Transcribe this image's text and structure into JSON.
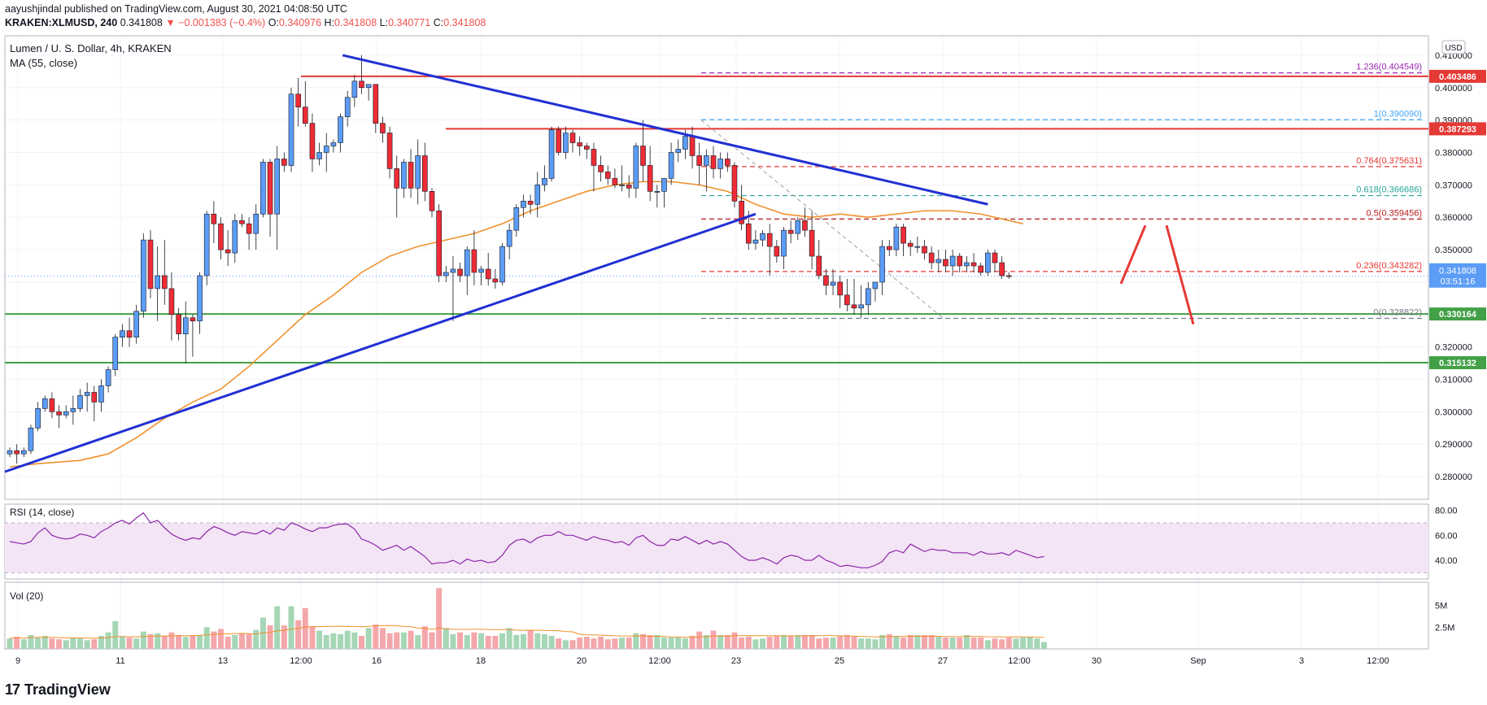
{
  "header": {
    "publisher_line": "aayushjindal published on TradingView.com, August 30, 2021 04:08:50 UTC",
    "symbol": "KRAKEN:XLMUSD, 240",
    "last": "0.341808",
    "change": "−0.001383 (−0.4%)",
    "o_label": "O:",
    "o": "0.340976",
    "h_label": "H:",
    "h": "0.341808",
    "l_label": "L:",
    "l": "0.340771",
    "c_label": "C:",
    "c": "0.341808"
  },
  "pane_labels": {
    "main_title": "Lumen / U. S. Dollar, 4h, KRAKEN",
    "ma": "MA (55, close)",
    "rsi": "RSI (14, close)",
    "vol": "Vol (20)",
    "currency": "USD"
  },
  "footer": {
    "brand": "TradingView"
  },
  "colors": {
    "up": "#5b9cf6",
    "down": "#ef2c36",
    "ma": "#f0912c",
    "trend": "#2130d3",
    "resistance": "#e53935",
    "support": "#43a047",
    "rsi_line": "#8e24aa",
    "rsi_band": "#f3e5f5",
    "vol_up": "#a5d6b5",
    "vol_down": "#f4a7aa"
  },
  "chart_data": {
    "type": "candlestick",
    "price_axis": {
      "ylim": [
        0.273,
        0.416
      ],
      "ticks": [
        "0.410000",
        "0.400000",
        "0.390000",
        "0.380000",
        "0.370000",
        "0.360000",
        "0.350000",
        "0.340000",
        "0.330000",
        "0.320000",
        "0.310000",
        "0.300000",
        "0.290000",
        "0.280000"
      ]
    },
    "time_axis": [
      "9",
      "11",
      "13",
      "12:00",
      "16",
      "18",
      "20",
      "12:00",
      "23",
      "25",
      "27",
      "12:00",
      "30",
      "Sep",
      "3",
      "12:00"
    ],
    "candles": [
      [
        0.287,
        0.289,
        0.286,
        0.288
      ],
      [
        0.288,
        0.29,
        0.284,
        0.287
      ],
      [
        0.287,
        0.289,
        0.286,
        0.288
      ],
      [
        0.288,
        0.296,
        0.287,
        0.295
      ],
      [
        0.295,
        0.303,
        0.294,
        0.301
      ],
      [
        0.301,
        0.305,
        0.3,
        0.304
      ],
      [
        0.304,
        0.306,
        0.298,
        0.3
      ],
      [
        0.3,
        0.302,
        0.295,
        0.299
      ],
      [
        0.299,
        0.302,
        0.298,
        0.3
      ],
      [
        0.3,
        0.305,
        0.296,
        0.301
      ],
      [
        0.301,
        0.307,
        0.3,
        0.305
      ],
      [
        0.305,
        0.309,
        0.3,
        0.306
      ],
      [
        0.306,
        0.308,
        0.297,
        0.303
      ],
      [
        0.303,
        0.31,
        0.3,
        0.308
      ],
      [
        0.308,
        0.314,
        0.306,
        0.313
      ],
      [
        0.313,
        0.324,
        0.311,
        0.323
      ],
      [
        0.323,
        0.327,
        0.32,
        0.325
      ],
      [
        0.325,
        0.329,
        0.32,
        0.323
      ],
      [
        0.323,
        0.333,
        0.321,
        0.331
      ],
      [
        0.331,
        0.355,
        0.329,
        0.353
      ],
      [
        0.353,
        0.356,
        0.335,
        0.338
      ],
      [
        0.338,
        0.351,
        0.328,
        0.342
      ],
      [
        0.342,
        0.353,
        0.333,
        0.338
      ],
      [
        0.338,
        0.343,
        0.322,
        0.33
      ],
      [
        0.33,
        0.332,
        0.322,
        0.324
      ],
      [
        0.324,
        0.334,
        0.315,
        0.329
      ],
      [
        0.329,
        0.33,
        0.317,
        0.328
      ],
      [
        0.328,
        0.343,
        0.324,
        0.342
      ],
      [
        0.342,
        0.362,
        0.339,
        0.361
      ],
      [
        0.361,
        0.365,
        0.352,
        0.358
      ],
      [
        0.358,
        0.36,
        0.347,
        0.35
      ],
      [
        0.35,
        0.356,
        0.345,
        0.349
      ],
      [
        0.349,
        0.361,
        0.346,
        0.359
      ],
      [
        0.359,
        0.361,
        0.357,
        0.358
      ],
      [
        0.358,
        0.36,
        0.35,
        0.355
      ],
      [
        0.355,
        0.364,
        0.35,
        0.361
      ],
      [
        0.361,
        0.378,
        0.36,
        0.377
      ],
      [
        0.377,
        0.378,
        0.354,
        0.361
      ],
      [
        0.361,
        0.382,
        0.35,
        0.378
      ],
      [
        0.378,
        0.38,
        0.374,
        0.376
      ],
      [
        0.376,
        0.4,
        0.374,
        0.398
      ],
      [
        0.398,
        0.403,
        0.388,
        0.394
      ],
      [
        0.394,
        0.402,
        0.388,
        0.389
      ],
      [
        0.389,
        0.392,
        0.374,
        0.378
      ],
      [
        0.378,
        0.383,
        0.376,
        0.38
      ],
      [
        0.38,
        0.386,
        0.374,
        0.382
      ],
      [
        0.382,
        0.384,
        0.38,
        0.383
      ],
      [
        0.383,
        0.392,
        0.38,
        0.391
      ],
      [
        0.391,
        0.399,
        0.388,
        0.397
      ],
      [
        0.397,
        0.404,
        0.394,
        0.402
      ],
      [
        0.402,
        0.41,
        0.398,
        0.4
      ],
      [
        0.4,
        0.401,
        0.396,
        0.401
      ],
      [
        0.401,
        0.401,
        0.386,
        0.389
      ],
      [
        0.389,
        0.391,
        0.383,
        0.386
      ],
      [
        0.386,
        0.388,
        0.372,
        0.375
      ],
      [
        0.375,
        0.379,
        0.36,
        0.369
      ],
      [
        0.369,
        0.378,
        0.366,
        0.377
      ],
      [
        0.377,
        0.381,
        0.366,
        0.369
      ],
      [
        0.369,
        0.384,
        0.364,
        0.379
      ],
      [
        0.379,
        0.383,
        0.365,
        0.368
      ],
      [
        0.368,
        0.369,
        0.36,
        0.362
      ],
      [
        0.362,
        0.364,
        0.34,
        0.342
      ],
      [
        0.342,
        0.345,
        0.34,
        0.343
      ],
      [
        0.343,
        0.348,
        0.328,
        0.344
      ],
      [
        0.344,
        0.346,
        0.34,
        0.342
      ],
      [
        0.342,
        0.351,
        0.336,
        0.35
      ],
      [
        0.35,
        0.356,
        0.339,
        0.343
      ],
      [
        0.343,
        0.345,
        0.339,
        0.344
      ],
      [
        0.344,
        0.349,
        0.339,
        0.341
      ],
      [
        0.341,
        0.344,
        0.338,
        0.34
      ],
      [
        0.34,
        0.352,
        0.339,
        0.351
      ],
      [
        0.351,
        0.358,
        0.347,
        0.356
      ],
      [
        0.356,
        0.364,
        0.354,
        0.363
      ],
      [
        0.363,
        0.367,
        0.36,
        0.365
      ],
      [
        0.365,
        0.367,
        0.361,
        0.364
      ],
      [
        0.364,
        0.374,
        0.36,
        0.37
      ],
      [
        0.37,
        0.376,
        0.368,
        0.372
      ],
      [
        0.372,
        0.388,
        0.371,
        0.387
      ],
      [
        0.387,
        0.388,
        0.379,
        0.38
      ],
      [
        0.38,
        0.388,
        0.378,
        0.386
      ],
      [
        0.386,
        0.387,
        0.38,
        0.383
      ],
      [
        0.383,
        0.385,
        0.379,
        0.382
      ],
      [
        0.382,
        0.383,
        0.378,
        0.381
      ],
      [
        0.381,
        0.383,
        0.368,
        0.376
      ],
      [
        0.376,
        0.379,
        0.371,
        0.374
      ],
      [
        0.374,
        0.376,
        0.37,
        0.372
      ],
      [
        0.372,
        0.375,
        0.369,
        0.37
      ],
      [
        0.37,
        0.376,
        0.368,
        0.37
      ],
      [
        0.37,
        0.373,
        0.366,
        0.369
      ],
      [
        0.369,
        0.383,
        0.366,
        0.382
      ],
      [
        0.382,
        0.39,
        0.371,
        0.376
      ],
      [
        0.376,
        0.382,
        0.365,
        0.368
      ],
      [
        0.368,
        0.37,
        0.363,
        0.368
      ],
      [
        0.368,
        0.372,
        0.363,
        0.372
      ],
      [
        0.372,
        0.383,
        0.37,
        0.38
      ],
      [
        0.38,
        0.384,
        0.377,
        0.381
      ],
      [
        0.381,
        0.387,
        0.378,
        0.385
      ],
      [
        0.385,
        0.388,
        0.375,
        0.379
      ],
      [
        0.379,
        0.383,
        0.37,
        0.376
      ],
      [
        0.376,
        0.381,
        0.368,
        0.379
      ],
      [
        0.379,
        0.382,
        0.372,
        0.375
      ],
      [
        0.375,
        0.38,
        0.372,
        0.378
      ],
      [
        0.378,
        0.38,
        0.374,
        0.376
      ],
      [
        0.376,
        0.377,
        0.363,
        0.365
      ],
      [
        0.365,
        0.37,
        0.356,
        0.358
      ],
      [
        0.358,
        0.362,
        0.35,
        0.352
      ],
      [
        0.352,
        0.356,
        0.35,
        0.353
      ],
      [
        0.353,
        0.356,
        0.351,
        0.355
      ],
      [
        0.355,
        0.358,
        0.342,
        0.351
      ],
      [
        0.351,
        0.353,
        0.346,
        0.348
      ],
      [
        0.348,
        0.357,
        0.344,
        0.356
      ],
      [
        0.356,
        0.359,
        0.352,
        0.355
      ],
      [
        0.355,
        0.36,
        0.353,
        0.359
      ],
      [
        0.359,
        0.363,
        0.354,
        0.356
      ],
      [
        0.356,
        0.362,
        0.344,
        0.348
      ],
      [
        0.348,
        0.353,
        0.341,
        0.342
      ],
      [
        0.342,
        0.344,
        0.336,
        0.339
      ],
      [
        0.339,
        0.344,
        0.336,
        0.34
      ],
      [
        0.34,
        0.342,
        0.332,
        0.336
      ],
      [
        0.336,
        0.341,
        0.331,
        0.333
      ],
      [
        0.333,
        0.341,
        0.33,
        0.332
      ],
      [
        0.332,
        0.339,
        0.329,
        0.333
      ],
      [
        0.333,
        0.34,
        0.33,
        0.338
      ],
      [
        0.338,
        0.34,
        0.334,
        0.34
      ],
      [
        0.34,
        0.353,
        0.336,
        0.351
      ],
      [
        0.351,
        0.353,
        0.348,
        0.35
      ],
      [
        0.35,
        0.358,
        0.348,
        0.357
      ],
      [
        0.357,
        0.358,
        0.348,
        0.352
      ],
      [
        0.352,
        0.353,
        0.348,
        0.351
      ],
      [
        0.351,
        0.354,
        0.349,
        0.351
      ],
      [
        0.351,
        0.353,
        0.347,
        0.349
      ],
      [
        0.349,
        0.351,
        0.344,
        0.346
      ],
      [
        0.346,
        0.35,
        0.343,
        0.347
      ],
      [
        0.347,
        0.35,
        0.343,
        0.345
      ],
      [
        0.345,
        0.35,
        0.342,
        0.348
      ],
      [
        0.348,
        0.349,
        0.343,
        0.345
      ],
      [
        0.345,
        0.348,
        0.343,
        0.346
      ],
      [
        0.346,
        0.349,
        0.343,
        0.345
      ],
      [
        0.345,
        0.346,
        0.342,
        0.343
      ],
      [
        0.343,
        0.35,
        0.342,
        0.349
      ],
      [
        0.349,
        0.35,
        0.343,
        0.346
      ],
      [
        0.346,
        0.348,
        0.341,
        0.342
      ],
      [
        0.342,
        0.343,
        0.341,
        0.3418
      ]
    ],
    "ma": [
      [
        0,
        0.283
      ],
      [
        4,
        0.284
      ],
      [
        10,
        0.285
      ],
      [
        14,
        0.287
      ],
      [
        18,
        0.292
      ],
      [
        22,
        0.298
      ],
      [
        26,
        0.303
      ],
      [
        30,
        0.307
      ],
      [
        34,
        0.314
      ],
      [
        38,
        0.322
      ],
      [
        42,
        0.33
      ],
      [
        46,
        0.336
      ],
      [
        50,
        0.343
      ],
      [
        54,
        0.348
      ],
      [
        58,
        0.351
      ],
      [
        62,
        0.353
      ],
      [
        66,
        0.355
      ],
      [
        70,
        0.358
      ],
      [
        74,
        0.362
      ],
      [
        78,
        0.365
      ],
      [
        82,
        0.368
      ],
      [
        86,
        0.37
      ],
      [
        90,
        0.371
      ],
      [
        94,
        0.371
      ],
      [
        98,
        0.37
      ],
      [
        102,
        0.368
      ],
      [
        106,
        0.364
      ],
      [
        110,
        0.361
      ],
      [
        114,
        0.36
      ],
      [
        118,
        0.361
      ],
      [
        122,
        0.36
      ],
      [
        126,
        0.361
      ],
      [
        130,
        0.362
      ],
      [
        134,
        0.362
      ],
      [
        138,
        0.361
      ],
      [
        142,
        0.359
      ],
      [
        144,
        0.358
      ]
    ],
    "trendlines": [
      {
        "from": [
          0,
          0.2815
        ],
        "to": [
          106,
          0.361
        ],
        "role": "support"
      },
      {
        "from": [
          48,
          0.41
        ],
        "to": [
          139,
          0.364
        ],
        "role": "resistance"
      }
    ],
    "resistance_levels": [
      0.403486,
      0.387293
    ],
    "support_levels": [
      0.330164,
      0.315132
    ],
    "level_labels": [
      "0.403486",
      "0.387293",
      "0.330164",
      "0.315132"
    ],
    "last_price": {
      "value": "0.341808",
      "countdown": "03:51:16",
      "price": 0.341808
    },
    "fibonacci": [
      {
        "label": "1.236(0.404549)",
        "price": 0.404549,
        "color": "#9c27b0"
      },
      {
        "label": "1(0.390090)",
        "price": 0.39009,
        "color": "#42a5f5"
      },
      {
        "label": "0.764(0.375631)",
        "price": 0.375631,
        "color": "#e53935"
      },
      {
        "label": "0.618(0.366686)",
        "price": 0.366686,
        "color": "#26a69a"
      },
      {
        "label": "0.5(0.359456)",
        "price": 0.359456,
        "color": "#b71c1c"
      },
      {
        "label": "0.236(0.343282)",
        "price": 0.343282,
        "color": "#e53935"
      },
      {
        "label": "0(0.328822)",
        "price": 0.328822,
        "color": "#787b86"
      }
    ],
    "projection": [
      [
        0.3395,
        0.3575
      ],
      [
        0.3575,
        0.327
      ]
    ],
    "rsi": {
      "levels": [
        30,
        70
      ],
      "ticks": [
        "80.00",
        "60.00",
        "40.00"
      ],
      "values": [
        55,
        54,
        53,
        55,
        62,
        66,
        60,
        58,
        57,
        58,
        61,
        60,
        58,
        63,
        66,
        70,
        72,
        69,
        74,
        78,
        70,
        72,
        66,
        61,
        58,
        56,
        58,
        57,
        63,
        67,
        65,
        62,
        60,
        63,
        62,
        61,
        64,
        61,
        66,
        64,
        70,
        68,
        65,
        63,
        66,
        66,
        68,
        69,
        69,
        65,
        57,
        55,
        52,
        48,
        50,
        52,
        48,
        51,
        47,
        43,
        37,
        38,
        38,
        40,
        37,
        41,
        39,
        40,
        38,
        39,
        44,
        52,
        56,
        57,
        54,
        58,
        60,
        60,
        63,
        60,
        60,
        58,
        56,
        59,
        57,
        56,
        54,
        55,
        52,
        58,
        60,
        55,
        52,
        52,
        57,
        56,
        59,
        56,
        53,
        56,
        53,
        55,
        53,
        48,
        43,
        40,
        40,
        42,
        40,
        37,
        42,
        44,
        43,
        40,
        40,
        44,
        40,
        38,
        35,
        36,
        35,
        34,
        34,
        36,
        39,
        46,
        48,
        46,
        53,
        50,
        47,
        49,
        48,
        48,
        46,
        46,
        46,
        44,
        47,
        45,
        45,
        46,
        44,
        48,
        46,
        44,
        42,
        43
      ]
    },
    "volume": {
      "ticks": [
        "5M",
        "2.5M"
      ],
      "values": [
        1.2,
        1.4,
        1.1,
        1.6,
        1.3,
        1.5,
        1.2,
        1.1,
        1.0,
        1.3,
        1.2,
        1.0,
        1.1,
        1.5,
        1.9,
        3.2,
        1.4,
        1.3,
        1.2,
        2.0,
        1.7,
        1.8,
        1.5,
        1.9,
        1.6,
        1.4,
        1.5,
        1.6,
        2.5,
        2.0,
        2.3,
        1.4,
        1.6,
        1.8,
        1.7,
        2.2,
        3.6,
        2.7,
        4.9,
        2.7,
        4.9,
        3.3,
        4.7,
        2.6,
        2.1,
        1.6,
        1.8,
        1.7,
        2.1,
        1.9,
        1.5,
        2.4,
        2.8,
        2.4,
        1.8,
        1.9,
        1.9,
        2.1,
        1.6,
        2.6,
        1.9,
        7.0,
        2.4,
        1.7,
        1.9,
        1.6,
        1.9,
        1.8,
        1.5,
        1.5,
        1.8,
        2.4,
        1.6,
        1.7,
        2.2,
        1.8,
        1.7,
        1.5,
        1.2,
        1.0,
        1.0,
        1.3,
        1.4,
        1.2,
        1.4,
        1.1,
        1.2,
        1.3,
        1.3,
        1.8,
        1.7,
        1.6,
        1.6,
        1.3,
        1.3,
        1.3,
        1.2,
        1.5,
        2.0,
        1.6,
        2.1,
        1.6,
        1.6,
        1.9,
        1.3,
        1.4,
        1.1,
        1.2,
        1.4,
        1.5,
        1.6,
        1.5,
        1.6,
        1.6,
        1.6,
        1.2,
        1.3,
        1.3,
        1.5,
        1.6,
        1.4,
        1.2,
        1.2,
        1.1,
        1.6,
        1.7,
        1.5,
        1.3,
        1.6,
        1.6,
        1.6,
        1.6,
        1.4,
        1.3,
        1.3,
        1.3,
        1.6,
        1.3,
        1.3,
        1.0,
        1.2,
        1.1,
        1.3,
        1.2,
        1.3,
        1.4,
        1.2,
        0.8
      ]
    }
  }
}
